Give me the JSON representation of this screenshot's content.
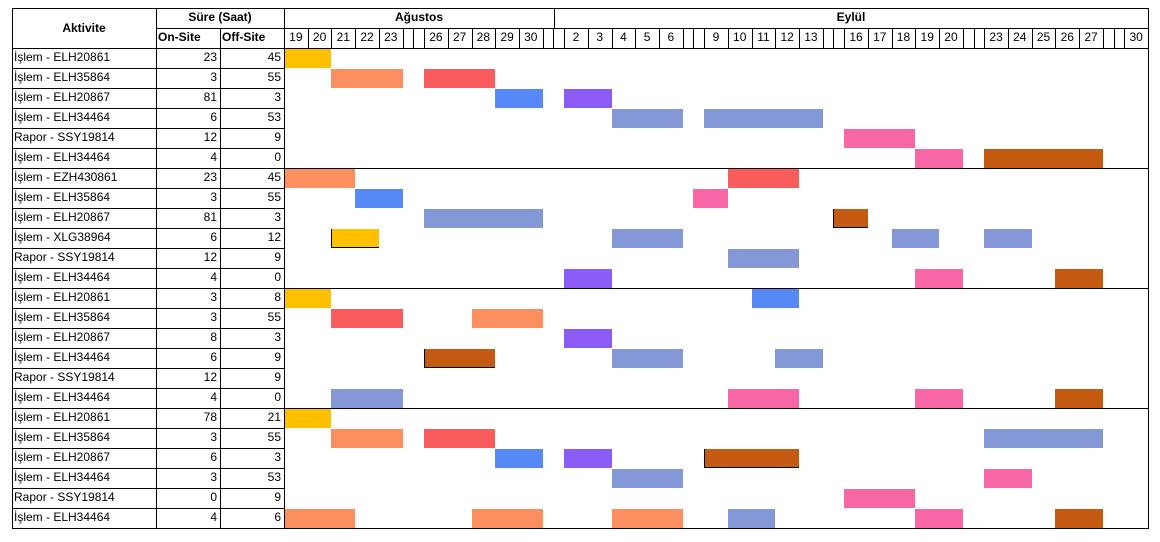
{
  "header": {
    "activity": "Aktivite",
    "duration": "Süre (Saat)",
    "onsite": "On-Site",
    "offsite": "Off-Site",
    "month_aug": "Ağustos",
    "month_sep": "Eylül"
  },
  "days": [
    "19",
    "20",
    "21",
    "22",
    "23",
    "",
    "",
    "26",
    "27",
    "28",
    "29",
    "30",
    "",
    "",
    "2",
    "3",
    "4",
    "5",
    "6",
    "",
    "",
    "9",
    "10",
    "11",
    "12",
    "13",
    "",
    "",
    "16",
    "17",
    "18",
    "19",
    "20",
    "",
    "",
    "23",
    "24",
    "25",
    "26",
    "27",
    "",
    "",
    "30"
  ],
  "colors": {
    "yellow": "#ffc000",
    "orange": "#fb8f60",
    "red": "#f95c5c",
    "blue": "#5688f6",
    "purple": "#8c5cf6",
    "slate": "#8497d7",
    "pink": "#f767a5",
    "brown": "#c55b13"
  },
  "rows": [
    {
      "activity": "İşlem - ELH20861",
      "on": "23",
      "off": "45",
      "bars": [
        {
          "s": 0,
          "e": 2,
          "c": "yellow"
        }
      ]
    },
    {
      "activity": "İşlem - ELH35864",
      "on": "3",
      "off": "55",
      "bars": [
        {
          "s": 2,
          "e": 5,
          "c": "orange"
        },
        {
          "s": 7,
          "e": 10,
          "c": "red"
        }
      ]
    },
    {
      "activity": "İşlem - ELH20867",
      "on": "81",
      "off": "3",
      "bars": [
        {
          "s": 10,
          "e": 12,
          "c": "blue"
        },
        {
          "s": 14,
          "e": 16,
          "c": "purple"
        }
      ]
    },
    {
      "activity": "İşlem - ELH34464",
      "on": "6",
      "off": "53",
      "bars": [
        {
          "s": 16,
          "e": 19,
          "c": "slate"
        },
        {
          "s": 21,
          "e": 26,
          "c": "slate"
        }
      ]
    },
    {
      "activity": "Rapor - SSY19814",
      "on": "12",
      "off": "9",
      "bars": [
        {
          "s": 28,
          "e": 31,
          "c": "pink"
        }
      ]
    },
    {
      "activity": "İşlem - ELH34464",
      "on": "4",
      "off": "0",
      "bars": [
        {
          "s": 31,
          "e": 33,
          "c": "pink"
        },
        {
          "s": 35,
          "e": 40,
          "c": "brown"
        }
      ]
    },
    {
      "activity": "İşlem - EZH430861",
      "on": "23",
      "off": "45",
      "bars": [
        {
          "s": 0,
          "e": 3,
          "c": "orange"
        },
        {
          "s": 22,
          "e": 25,
          "c": "red"
        }
      ]
    },
    {
      "activity": "İşlem - ELH35864",
      "on": "3",
      "off": "55",
      "bars": [
        {
          "s": 3,
          "e": 5,
          "c": "blue"
        },
        {
          "s": 20,
          "e": 22,
          "c": "pink"
        }
      ]
    },
    {
      "activity": "İşlem - ELH20867",
      "on": "81",
      "off": "3",
      "bars": [
        {
          "s": 7,
          "e": 12,
          "c": "slate"
        },
        {
          "s": 27,
          "e": 29,
          "c": "brown",
          "outline": true
        }
      ]
    },
    {
      "activity": "İşlem - XLG38964",
      "on": "6",
      "off": "12",
      "bars": [
        {
          "s": 2,
          "e": 4,
          "c": "yellow",
          "outline": true
        },
        {
          "s": 16,
          "e": 19,
          "c": "slate"
        },
        {
          "s": 30,
          "e": 32,
          "c": "slate"
        },
        {
          "s": 35,
          "e": 37,
          "c": "slate"
        }
      ]
    },
    {
      "activity": "Rapor - SSY19814",
      "on": "12",
      "off": "9",
      "bars": [
        {
          "s": 22,
          "e": 25,
          "c": "slate"
        }
      ]
    },
    {
      "activity": "İşlem - ELH34464",
      "on": "4",
      "off": "0",
      "bars": [
        {
          "s": 14,
          "e": 16,
          "c": "purple"
        },
        {
          "s": 31,
          "e": 33,
          "c": "pink"
        },
        {
          "s": 38,
          "e": 40,
          "c": "brown"
        }
      ]
    },
    {
      "activity": "İşlem - ELH20861",
      "on": "3",
      "off": "8",
      "bars": [
        {
          "s": 0,
          "e": 2,
          "c": "yellow"
        },
        {
          "s": 23,
          "e": 25,
          "c": "blue"
        }
      ]
    },
    {
      "activity": "İşlem - ELH35864",
      "on": "3",
      "off": "55",
      "bars": [
        {
          "s": 2,
          "e": 5,
          "c": "red"
        },
        {
          "s": 9,
          "e": 12,
          "c": "orange"
        }
      ]
    },
    {
      "activity": "İşlem - ELH20867",
      "on": "8",
      "off": "3",
      "bars": [
        {
          "s": 14,
          "e": 16,
          "c": "purple"
        }
      ]
    },
    {
      "activity": "İşlem - ELH34464",
      "on": "6",
      "off": "9",
      "bars": [
        {
          "s": 7,
          "e": 10,
          "c": "brown",
          "outline": true
        },
        {
          "s": 16,
          "e": 19,
          "c": "slate"
        },
        {
          "s": 24,
          "e": 26,
          "c": "slate"
        }
      ]
    },
    {
      "activity": "Rapor - SSY19814",
      "on": "12",
      "off": "9",
      "bars": []
    },
    {
      "activity": "İşlem - ELH34464",
      "on": "4",
      "off": "0",
      "bars": [
        {
          "s": 2,
          "e": 5,
          "c": "slate"
        },
        {
          "s": 22,
          "e": 25,
          "c": "pink"
        },
        {
          "s": 31,
          "e": 33,
          "c": "pink"
        },
        {
          "s": 38,
          "e": 40,
          "c": "brown"
        }
      ]
    },
    {
      "activity": "İşlem - ELH20861",
      "on": "78",
      "off": "21",
      "bars": [
        {
          "s": 0,
          "e": 2,
          "c": "yellow"
        }
      ]
    },
    {
      "activity": "İşlem - ELH35864",
      "on": "3",
      "off": "55",
      "bars": [
        {
          "s": 2,
          "e": 5,
          "c": "orange"
        },
        {
          "s": 7,
          "e": 10,
          "c": "red"
        },
        {
          "s": 35,
          "e": 40,
          "c": "slate"
        }
      ]
    },
    {
      "activity": "İşlem - ELH20867",
      "on": "6",
      "off": "3",
      "bars": [
        {
          "s": 10,
          "e": 12,
          "c": "blue"
        },
        {
          "s": 14,
          "e": 16,
          "c": "purple"
        },
        {
          "s": 21,
          "e": 25,
          "c": "brown",
          "outline": true
        }
      ]
    },
    {
      "activity": "İşlem - ELH34464",
      "on": "3",
      "off": "53",
      "bars": [
        {
          "s": 16,
          "e": 19,
          "c": "slate"
        },
        {
          "s": 35,
          "e": 37,
          "c": "pink"
        }
      ]
    },
    {
      "activity": "Rapor - SSY19814",
      "on": "0",
      "off": "9",
      "bars": [
        {
          "s": 28,
          "e": 31,
          "c": "pink"
        }
      ]
    },
    {
      "activity": "İşlem - ELH34464",
      "on": "4",
      "off": "6",
      "bars": [
        {
          "s": 0,
          "e": 3,
          "c": "orange"
        },
        {
          "s": 9,
          "e": 12,
          "c": "orange"
        },
        {
          "s": 16,
          "e": 19,
          "c": "orange"
        },
        {
          "s": 22,
          "e": 24,
          "c": "slate"
        },
        {
          "s": 31,
          "e": 33,
          "c": "pink"
        },
        {
          "s": 38,
          "e": 40,
          "c": "brown"
        }
      ]
    }
  ]
}
